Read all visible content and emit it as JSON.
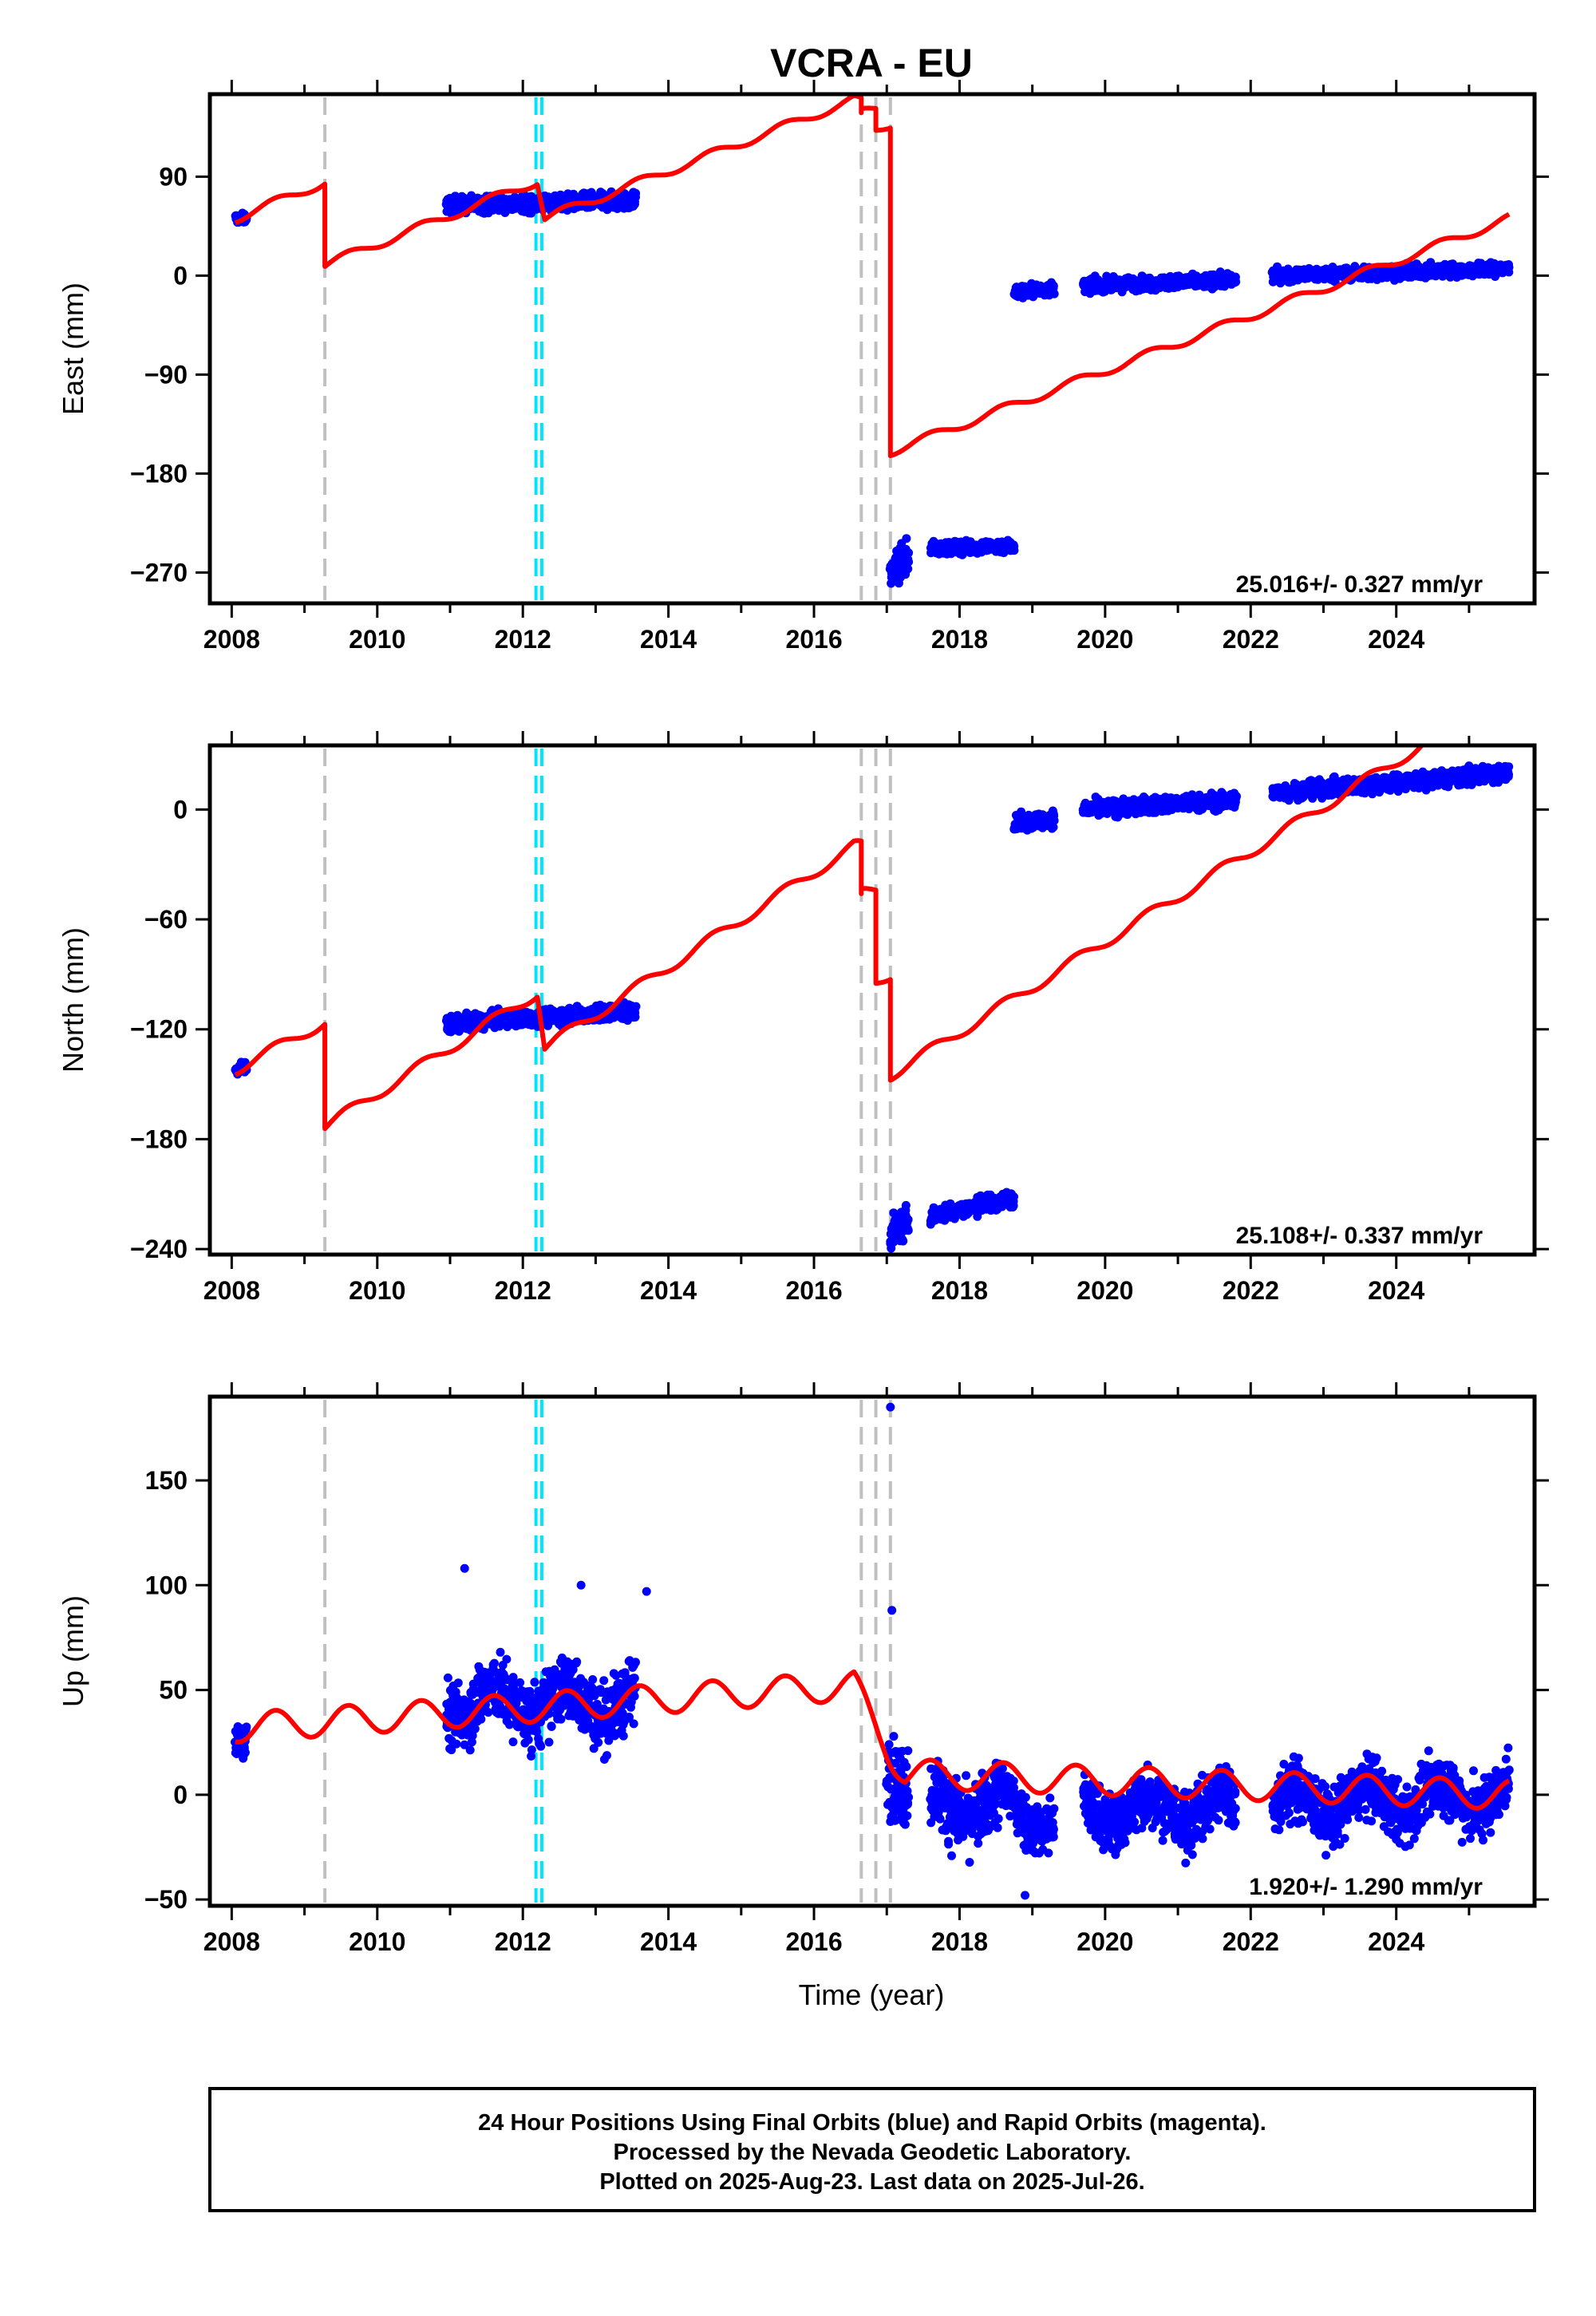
{
  "title": "VCRA - EU",
  "xlabel": "Time (year)",
  "footer": {
    "line1": "24 Hour Positions Using Final Orbits (blue) and Rapid Orbits (magenta).",
    "line2": "Processed by the Nevada Geodetic Laboratory.",
    "line3": "Plotted on 2025-Aug-23. Last data on 2025-Jul-26."
  },
  "colors": {
    "data": "#0000ff",
    "model": "#ff0000",
    "event_gray": "#c0c0c0",
    "event_cyan": "#00e5ff"
  },
  "chart_data": [
    {
      "type": "scatter",
      "component": "east",
      "ylabel": "East (mm)",
      "rate": "25.016+/- 0.327 mm/yr",
      "xlim": [
        2007.7,
        2025.9
      ],
      "ylim": [
        -298,
        165
      ],
      "yticks": [
        "90",
        "0",
        "−90",
        "−180",
        "−270"
      ],
      "ytick_values": [
        90,
        0,
        -90,
        -180,
        -270
      ],
      "xticks": [
        "2008",
        "2010",
        "2012",
        "2014",
        "2016",
        "2018",
        "2020",
        "2022",
        "2024"
      ],
      "xtick_values": [
        2008,
        2010,
        2012,
        2014,
        2016,
        2018,
        2020,
        2022,
        2024
      ],
      "events_gray": [
        2009.28,
        2016.65,
        2016.85,
        2017.05
      ],
      "events_cyan": [
        2012.18,
        2012.26
      ],
      "data_segments": [
        {
          "x": [
            2008.05,
            2008.2
          ],
          "y": [
            52,
            52
          ],
          "sd": 3
        },
        {
          "x": [
            2010.95,
            2013.55
          ],
          "y": [
            64,
            68
          ],
          "sd": 5
        },
        {
          "x": [
            2017.05,
            2017.3
          ],
          "y": [
            -270,
            -255
          ],
          "sd": 10
        },
        {
          "x": [
            2017.6,
            2018.75
          ],
          "y": [
            -248,
            -246
          ],
          "sd": 4
        },
        {
          "x": [
            2018.75,
            2019.3
          ],
          "y": [
            -15,
            -12
          ],
          "sd": 4
        },
        {
          "x": [
            2019.7,
            2021.8
          ],
          "y": [
            -9,
            -4
          ],
          "sd": 4
        },
        {
          "x": [
            2022.3,
            2025.55
          ],
          "y": [
            0,
            6
          ],
          "sd": 4
        }
      ],
      "model_points": [
        [
          2008.05,
          52
        ],
        [
          2009.28,
          85
        ],
        [
          2009.28,
          10
        ],
        [
          2012.2,
          86
        ],
        [
          2012.3,
          52
        ],
        [
          2016.55,
          160
        ],
        [
          2016.65,
          158
        ],
        [
          2016.65,
          148
        ],
        [
          2016.85,
          152
        ],
        [
          2016.85,
          132
        ],
        [
          2017.05,
          138
        ],
        [
          2017.05,
          -160
        ],
        [
          2025.55,
          52
        ]
      ],
      "seasonal_amp": 4
    },
    {
      "type": "scatter",
      "component": "north",
      "ylabel": "North (mm)",
      "rate": "25.108+/- 0.337 mm/yr",
      "xlim": [
        2007.7,
        2025.9
      ],
      "ylim": [
        -243,
        35
      ],
      "yticks": [
        "0",
        "−60",
        "−120",
        "−180",
        "−240"
      ],
      "ytick_values": [
        0,
        -60,
        -120,
        -180,
        -240
      ],
      "xticks": [
        "2008",
        "2010",
        "2012",
        "2014",
        "2016",
        "2018",
        "2020",
        "2022",
        "2024"
      ],
      "xtick_values": [
        2008,
        2010,
        2012,
        2014,
        2016,
        2018,
        2020,
        2022,
        2024
      ],
      "events_gray": [
        2009.28,
        2016.65,
        2016.85,
        2017.05
      ],
      "events_cyan": [
        2012.18,
        2012.26
      ],
      "data_segments": [
        {
          "x": [
            2008.05,
            2008.2
          ],
          "y": [
            -142,
            -141
          ],
          "sd": 2
        },
        {
          "x": [
            2010.95,
            2013.55
          ],
          "y": [
            -117,
            -110
          ],
          "sd": 3
        },
        {
          "x": [
            2017.05,
            2017.3
          ],
          "y": [
            -232,
            -225
          ],
          "sd": 6
        },
        {
          "x": [
            2017.6,
            2018.75
          ],
          "y": [
            -222,
            -212
          ],
          "sd": 3
        },
        {
          "x": [
            2018.75,
            2019.3
          ],
          "y": [
            -8,
            -5
          ],
          "sd": 3
        },
        {
          "x": [
            2019.7,
            2021.8
          ],
          "y": [
            0,
            5
          ],
          "sd": 3
        },
        {
          "x": [
            2022.3,
            2025.55
          ],
          "y": [
            9,
            20
          ],
          "sd": 3
        }
      ],
      "model_points": [
        [
          2008.05,
          -142
        ],
        [
          2009.28,
          -116
        ],
        [
          2009.28,
          -173
        ],
        [
          2012.2,
          -100
        ],
        [
          2012.3,
          -130
        ],
        [
          2016.55,
          -20
        ],
        [
          2016.65,
          -20
        ],
        [
          2016.65,
          -46
        ],
        [
          2016.85,
          -44
        ],
        [
          2016.85,
          -95
        ],
        [
          2017.05,
          -90
        ],
        [
          2017.05,
          -145
        ],
        [
          2024.35,
          35
        ]
      ],
      "seasonal_amp": 3
    },
    {
      "type": "scatter",
      "component": "up",
      "ylabel": "Up (mm)",
      "rate": "1.920+/- 1.290 mm/yr",
      "xlim": [
        2007.7,
        2025.9
      ],
      "ylim": [
        -53,
        190
      ],
      "yticks": [
        "150",
        "100",
        "50",
        "0",
        "−50"
      ],
      "ytick_values": [
        150,
        100,
        50,
        0,
        -50
      ],
      "xticks": [
        "2008",
        "2010",
        "2012",
        "2014",
        "2016",
        "2018",
        "2020",
        "2022",
        "2024"
      ],
      "xtick_values": [
        2008,
        2010,
        2012,
        2014,
        2016,
        2018,
        2020,
        2022,
        2024
      ],
      "events_gray": [
        2009.28,
        2016.65,
        2016.85,
        2017.05
      ],
      "events_cyan": [
        2012.18,
        2012.26
      ],
      "data_segments": [
        {
          "x": [
            2008.05,
            2008.2
          ],
          "y": [
            32,
            32
          ],
          "sd": 6
        },
        {
          "x": [
            2010.95,
            2013.55
          ],
          "y": [
            44,
            44
          ],
          "sd": 11
        },
        {
          "x": [
            2017.0,
            2017.3
          ],
          "y": [
            20,
            5
          ],
          "sd": 14
        },
        {
          "x": [
            2017.6,
            2018.75
          ],
          "y": [
            -5,
            -5
          ],
          "sd": 11
        },
        {
          "x": [
            2018.75,
            2019.3
          ],
          "y": [
            -10,
            -10
          ],
          "sd": 9
        },
        {
          "x": [
            2019.7,
            2021.8
          ],
          "y": [
            -8,
            -6
          ],
          "sd": 10
        },
        {
          "x": [
            2022.3,
            2025.55
          ],
          "y": [
            -5,
            0
          ],
          "sd": 10
        }
      ],
      "outliers": [
        [
          2017.05,
          185
        ],
        [
          2011.2,
          108
        ],
        [
          2013.7,
          97
        ],
        [
          2012.8,
          100
        ],
        [
          2018.9,
          -48
        ],
        [
          2017.07,
          88
        ]
      ],
      "model_points": [
        [
          2008.05,
          32
        ],
        [
          2016.55,
          52
        ],
        [
          2017.05,
          20
        ],
        [
          2017.25,
          10
        ],
        [
          2025.55,
          0
        ]
      ],
      "seasonal_amp": 7
    }
  ]
}
